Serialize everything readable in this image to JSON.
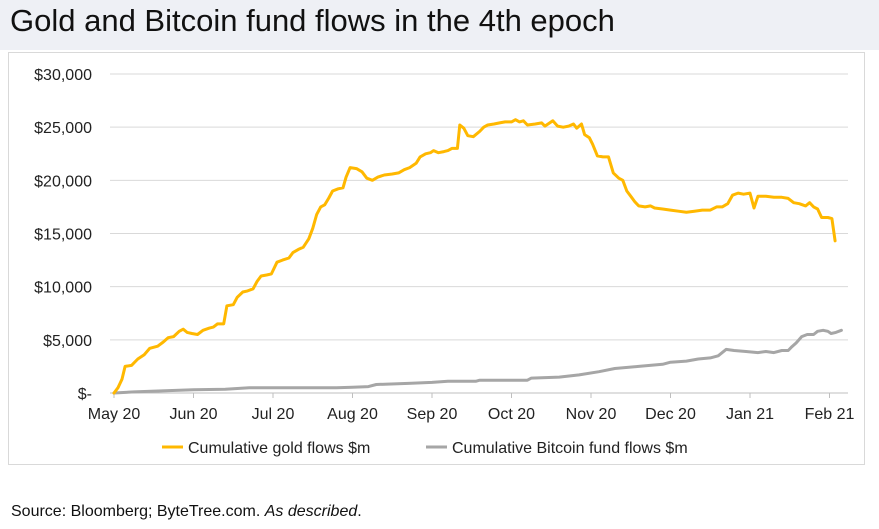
{
  "title": "Gold and Bitcoin fund flows in the 4th epoch",
  "source": {
    "text": "Source: Bloomberg; ByteTree.com.",
    "italic": "As described",
    "end": "."
  },
  "chart_data": {
    "type": "line",
    "title": "Gold and Bitcoin fund flows in the 4th epoch",
    "xlabel": "",
    "ylabel": "",
    "x_ticks": [
      "May 20",
      "Jun 20",
      "Jul 20",
      "Aug 20",
      "Sep 20",
      "Oct 20",
      "Nov 20",
      "Dec 20",
      "Jan 21",
      "Feb 21"
    ],
    "x_range": [
      0,
      9.15
    ],
    "y_ticks": [
      "$-",
      "$5,000",
      "$10,000",
      "$15,000",
      "$20,000",
      "$25,000",
      "$30,000"
    ],
    "ylim": [
      0,
      30000
    ],
    "grid": "horizontal",
    "legend": "bottom",
    "series": [
      {
        "name": "Cumulative gold flows $m",
        "color": "#ffb800",
        "points": [
          [
            0.0,
            0
          ],
          [
            0.05,
            500
          ],
          [
            0.1,
            1300
          ],
          [
            0.14,
            2500
          ],
          [
            0.22,
            2600
          ],
          [
            0.3,
            3200
          ],
          [
            0.38,
            3600
          ],
          [
            0.45,
            4200
          ],
          [
            0.55,
            4400
          ],
          [
            0.62,
            4800
          ],
          [
            0.68,
            5200
          ],
          [
            0.75,
            5300
          ],
          [
            0.82,
            5800
          ],
          [
            0.87,
            6000
          ],
          [
            0.92,
            5700
          ],
          [
            0.98,
            5600
          ],
          [
            1.05,
            5500
          ],
          [
            1.12,
            5900
          ],
          [
            1.2,
            6100
          ],
          [
            1.25,
            6200
          ],
          [
            1.3,
            6500
          ],
          [
            1.38,
            6500
          ],
          [
            1.42,
            8200
          ],
          [
            1.5,
            8300
          ],
          [
            1.55,
            9000
          ],
          [
            1.62,
            9500
          ],
          [
            1.68,
            9600
          ],
          [
            1.75,
            9800
          ],
          [
            1.8,
            10500
          ],
          [
            1.85,
            11000
          ],
          [
            1.92,
            11100
          ],
          [
            1.98,
            11200
          ],
          [
            2.05,
            12300
          ],
          [
            2.12,
            12500
          ],
          [
            2.2,
            12700
          ],
          [
            2.25,
            13200
          ],
          [
            2.32,
            13500
          ],
          [
            2.38,
            13700
          ],
          [
            2.45,
            14500
          ],
          [
            2.5,
            15500
          ],
          [
            2.55,
            16800
          ],
          [
            2.6,
            17500
          ],
          [
            2.65,
            17700
          ],
          [
            2.7,
            18300
          ],
          [
            2.75,
            19000
          ],
          [
            2.82,
            19200
          ],
          [
            2.88,
            19300
          ],
          [
            2.92,
            20300
          ],
          [
            2.97,
            21200
          ],
          [
            3.05,
            21100
          ],
          [
            3.12,
            20800
          ],
          [
            3.18,
            20200
          ],
          [
            3.25,
            20000
          ],
          [
            3.32,
            20300
          ],
          [
            3.4,
            20500
          ],
          [
            3.5,
            20600
          ],
          [
            3.58,
            20700
          ],
          [
            3.65,
            21000
          ],
          [
            3.72,
            21200
          ],
          [
            3.8,
            21600
          ],
          [
            3.85,
            22200
          ],
          [
            3.92,
            22500
          ],
          [
            3.98,
            22600
          ],
          [
            4.02,
            22800
          ],
          [
            4.08,
            22600
          ],
          [
            4.15,
            22700
          ],
          [
            4.2,
            22800
          ],
          [
            4.25,
            23000
          ],
          [
            4.32,
            23000
          ],
          [
            4.35,
            25200
          ],
          [
            4.4,
            24900
          ],
          [
            4.45,
            24200
          ],
          [
            4.52,
            24100
          ],
          [
            4.6,
            24600
          ],
          [
            4.65,
            25000
          ],
          [
            4.7,
            25200
          ],
          [
            4.78,
            25300
          ],
          [
            4.85,
            25400
          ],
          [
            4.92,
            25500
          ],
          [
            5.0,
            25500
          ],
          [
            5.05,
            25700
          ],
          [
            5.1,
            25500
          ],
          [
            5.15,
            25600
          ],
          [
            5.2,
            25200
          ],
          [
            5.3,
            25300
          ],
          [
            5.38,
            25400
          ],
          [
            5.42,
            25100
          ],
          [
            5.48,
            25400
          ],
          [
            5.52,
            25600
          ],
          [
            5.58,
            25100
          ],
          [
            5.65,
            25000
          ],
          [
            5.72,
            25100
          ],
          [
            5.78,
            25300
          ],
          [
            5.82,
            24900
          ],
          [
            5.88,
            25300
          ],
          [
            5.92,
            24300
          ],
          [
            5.98,
            24000
          ],
          [
            6.02,
            23400
          ],
          [
            6.08,
            22300
          ],
          [
            6.15,
            22200
          ],
          [
            6.22,
            22200
          ],
          [
            6.28,
            20700
          ],
          [
            6.35,
            20200
          ],
          [
            6.4,
            20000
          ],
          [
            6.45,
            19000
          ],
          [
            6.5,
            18500
          ],
          [
            6.55,
            18000
          ],
          [
            6.6,
            17600
          ],
          [
            6.68,
            17500
          ],
          [
            6.75,
            17600
          ],
          [
            6.8,
            17400
          ],
          [
            6.9,
            17300
          ],
          [
            7.0,
            17200
          ],
          [
            7.1,
            17100
          ],
          [
            7.2,
            17000
          ],
          [
            7.3,
            17100
          ],
          [
            7.4,
            17200
          ],
          [
            7.5,
            17200
          ],
          [
            7.58,
            17500
          ],
          [
            7.65,
            17500
          ],
          [
            7.72,
            17800
          ],
          [
            7.78,
            18600
          ],
          [
            7.85,
            18800
          ],
          [
            7.92,
            18700
          ],
          [
            8.0,
            18800
          ],
          [
            8.05,
            17400
          ],
          [
            8.1,
            18500
          ],
          [
            8.2,
            18500
          ],
          [
            8.3,
            18400
          ],
          [
            8.4,
            18400
          ],
          [
            8.48,
            18300
          ],
          [
            8.55,
            17900
          ],
          [
            8.62,
            17800
          ],
          [
            8.7,
            17600
          ],
          [
            8.75,
            17900
          ],
          [
            8.8,
            17500
          ],
          [
            8.85,
            17300
          ],
          [
            8.9,
            16500
          ],
          [
            8.98,
            16500
          ],
          [
            9.03,
            16400
          ],
          [
            9.07,
            14300
          ]
        ]
      },
      {
        "name": "Cumulative Bitcoin fund flows $m",
        "color": "#a6a6a6",
        "points": [
          [
            0.0,
            0
          ],
          [
            0.25,
            100
          ],
          [
            0.6,
            200
          ],
          [
            1.0,
            300
          ],
          [
            1.4,
            350
          ],
          [
            1.7,
            500
          ],
          [
            2.3,
            500
          ],
          [
            2.8,
            500
          ],
          [
            3.0,
            550
          ],
          [
            3.2,
            600
          ],
          [
            3.3,
            800
          ],
          [
            3.7,
            900
          ],
          [
            4.0,
            1000
          ],
          [
            4.2,
            1100
          ],
          [
            4.55,
            1100
          ],
          [
            4.6,
            1200
          ],
          [
            4.9,
            1200
          ],
          [
            5.2,
            1200
          ],
          [
            5.25,
            1400
          ],
          [
            5.6,
            1500
          ],
          [
            5.85,
            1700
          ],
          [
            6.1,
            2000
          ],
          [
            6.3,
            2300
          ],
          [
            6.6,
            2500
          ],
          [
            6.9,
            2700
          ],
          [
            7.0,
            2900
          ],
          [
            7.2,
            3000
          ],
          [
            7.35,
            3200
          ],
          [
            7.5,
            3300
          ],
          [
            7.6,
            3500
          ],
          [
            7.7,
            4100
          ],
          [
            7.8,
            4000
          ],
          [
            7.95,
            3900
          ],
          [
            8.1,
            3800
          ],
          [
            8.2,
            3900
          ],
          [
            8.3,
            3800
          ],
          [
            8.4,
            4000
          ],
          [
            8.48,
            4000
          ],
          [
            8.52,
            4300
          ],
          [
            8.58,
            4700
          ],
          [
            8.65,
            5300
          ],
          [
            8.72,
            5500
          ],
          [
            8.8,
            5500
          ],
          [
            8.85,
            5800
          ],
          [
            8.92,
            5900
          ],
          [
            8.98,
            5800
          ],
          [
            9.02,
            5600
          ],
          [
            9.08,
            5700
          ],
          [
            9.15,
            5900
          ]
        ]
      }
    ]
  }
}
